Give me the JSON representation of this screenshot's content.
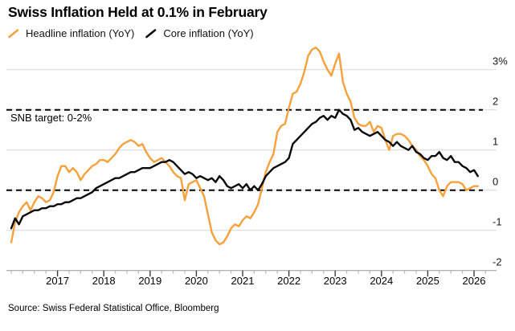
{
  "header": {
    "title": "Swiss Inflation Held at 0.1% in February"
  },
  "annotation": {
    "snb_target_label": "SNB target: 0-2%"
  },
  "source": {
    "text": "Source: Swiss Federal Statistical Office, Bloomberg"
  },
  "colors": {
    "headline_orange": "#F6A13C",
    "core_black": "#0a0a0a",
    "gridline": "#dcdcdc",
    "axis_line": "#a6a6a6",
    "minor_tick": "#b3b3b3",
    "major_tick": "#3c3c3c",
    "dashed_target": "#000000"
  },
  "chart_data": {
    "type": "line",
    "title": "Swiss Inflation Held at 0.1% in February",
    "frequency": "monthly",
    "x_start": "2016-01",
    "x_end": "2026-02",
    "ylim": [
      -2,
      3.6
    ],
    "grid": true,
    "legend_position": "top-left",
    "y_tick_values": [
      3,
      2,
      1,
      0,
      -1,
      -2
    ],
    "y_tick_labels": [
      "3%",
      "2",
      "1",
      "0",
      "-1",
      "-2"
    ],
    "x_tick_labels": [
      "2017",
      "2018",
      "2019",
      "2020",
      "2021",
      "2022",
      "2023",
      "2024",
      "2025",
      "2026"
    ],
    "target_band": {
      "label": "SNB target: 0-2%",
      "lower": 0,
      "upper": 2,
      "style": "dashed"
    },
    "series": [
      {
        "name": "Headline inflation (YoY)",
        "color": "#F6A13C",
        "values": [
          -1.3,
          -0.8,
          -0.55,
          -0.4,
          -0.3,
          -0.5,
          -0.3,
          -0.15,
          -0.2,
          -0.3,
          -0.25,
          -0.05,
          0.35,
          0.6,
          0.6,
          0.45,
          0.55,
          0.45,
          0.25,
          0.4,
          0.5,
          0.6,
          0.65,
          0.75,
          0.75,
          0.7,
          0.8,
          0.9,
          1.05,
          1.15,
          1.2,
          1.25,
          1.2,
          1.1,
          1.15,
          0.95,
          0.8,
          0.7,
          0.75,
          0.8,
          0.7,
          0.6,
          0.45,
          0.35,
          0.3,
          -0.25,
          0.15,
          0.2,
          0.25,
          0.05,
          -0.15,
          -0.6,
          -1.05,
          -1.25,
          -1.35,
          -1.3,
          -1.15,
          -0.95,
          -0.85,
          -0.9,
          -0.75,
          -0.65,
          -0.7,
          -0.55,
          -0.35,
          0.05,
          0.45,
          0.7,
          0.9,
          1.45,
          1.6,
          1.65,
          2.05,
          2.4,
          2.45,
          2.65,
          2.95,
          3.35,
          3.5,
          3.55,
          3.45,
          3.2,
          3.0,
          2.85,
          3.15,
          3.4,
          2.7,
          2.4,
          2.2,
          1.8,
          1.65,
          1.6,
          1.6,
          1.7,
          1.45,
          1.6,
          1.55,
          1.25,
          1.0,
          1.35,
          1.4,
          1.4,
          1.35,
          1.25,
          1.1,
          1.0,
          0.85,
          0.75,
          0.6,
          0.4,
          0.3,
          0.0,
          -0.15,
          0.1,
          0.2,
          0.2,
          0.2,
          0.15,
          0.0,
          0.05,
          0.1,
          0.1
        ]
      },
      {
        "name": "Core inflation (YoY)",
        "color": "#0a0a0a",
        "values": [
          -0.95,
          -0.7,
          -0.85,
          -0.65,
          -0.6,
          -0.55,
          -0.5,
          -0.5,
          -0.45,
          -0.45,
          -0.4,
          -0.4,
          -0.35,
          -0.35,
          -0.3,
          -0.3,
          -0.25,
          -0.2,
          -0.2,
          -0.15,
          -0.1,
          -0.05,
          0.05,
          0.1,
          0.15,
          0.2,
          0.25,
          0.3,
          0.3,
          0.35,
          0.4,
          0.45,
          0.45,
          0.5,
          0.55,
          0.55,
          0.55,
          0.6,
          0.65,
          0.7,
          0.7,
          0.75,
          0.7,
          0.6,
          0.5,
          0.4,
          0.45,
          0.4,
          0.3,
          0.35,
          0.3,
          0.25,
          0.3,
          0.2,
          0.35,
          0.25,
          0.1,
          0.05,
          0.1,
          0.15,
          0.05,
          0.15,
          0.0,
          0.1,
          0.0,
          0.15,
          0.35,
          0.45,
          0.55,
          0.6,
          0.65,
          0.7,
          0.8,
          1.15,
          1.25,
          1.35,
          1.45,
          1.55,
          1.65,
          1.7,
          1.8,
          1.85,
          1.75,
          1.85,
          1.8,
          2.0,
          1.9,
          1.85,
          1.75,
          1.5,
          1.55,
          1.45,
          1.4,
          1.35,
          1.4,
          1.45,
          1.35,
          1.25,
          1.2,
          1.1,
          1.2,
          1.1,
          1.05,
          1.0,
          1.1,
          0.95,
          0.9,
          0.8,
          0.75,
          0.85,
          0.85,
          0.95,
          0.8,
          0.75,
          0.85,
          0.7,
          0.7,
          0.6,
          0.55,
          0.45,
          0.5,
          0.35
        ]
      }
    ]
  }
}
